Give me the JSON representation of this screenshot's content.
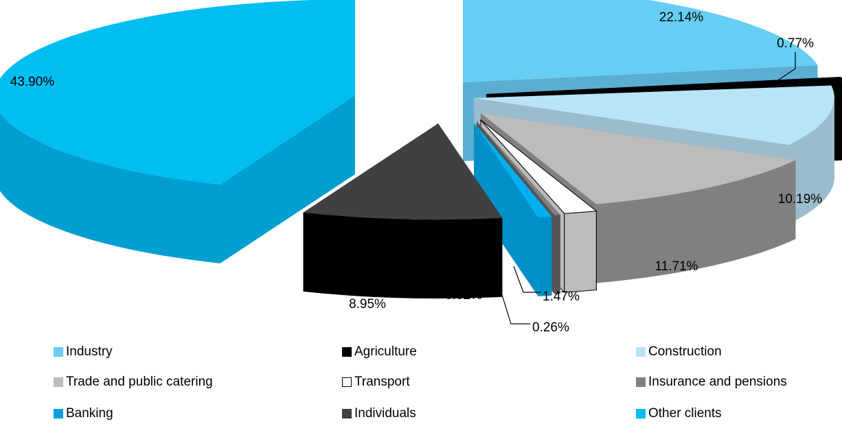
{
  "chart_data": {
    "type": "pie",
    "title": "",
    "slices": [
      {
        "label": "Industry",
        "value": 22.14,
        "value_label": "22.14%",
        "color": "#66cdf4",
        "side_color": "#5aaed1"
      },
      {
        "label": "Agriculture",
        "value": 0.77,
        "value_label": "0.77%",
        "color": "#000000",
        "side_color": "#000000"
      },
      {
        "label": "Construction",
        "value": 10.19,
        "value_label": "10.19%",
        "color": "#b9e4f7",
        "side_color": "#9bbccd"
      },
      {
        "label": "Insurance and pensions",
        "value": 11.71,
        "value_label": "11.71%",
        "color": "#bcbcbc",
        "side_color": "#808080"
      },
      {
        "label": "Transport",
        "value": 1.47,
        "value_label": "1.47%",
        "color": "#ffffff",
        "side_color": "#bcbcbc"
      },
      {
        "label": "Trade and public catering",
        "value": 0.26,
        "value_label": "0.26%",
        "color": "#808080",
        "side_color": "#555555"
      },
      {
        "label": "Banking",
        "value": 0.62,
        "value_label": "0.62%",
        "color": "#00b0f0",
        "side_color": "#0090c8"
      },
      {
        "label": "Individuals",
        "value": 8.95,
        "value_label": "8.95%",
        "color": "#404040",
        "side_color": "#000000"
      },
      {
        "label": "Other clients",
        "value": 43.9,
        "value_label": "43.90%",
        "color": "#00bdf2",
        "side_color": "#009fcf"
      }
    ],
    "legend": {
      "placement": "bottom",
      "entries": [
        {
          "label": "Industry",
          "color": "#66cdf4"
        },
        {
          "label": "Agriculture",
          "color": "#000000"
        },
        {
          "label": "Construction",
          "color": "#b9e4f7"
        },
        {
          "label": "Trade and public catering",
          "color": "#bcbcbc"
        },
        {
          "label": "Transport",
          "color": "#ffffff"
        },
        {
          "label": "Insurance and pensions",
          "color": "#808080"
        },
        {
          "label": "Banking",
          "color": "#009ee0"
        },
        {
          "label": "Individuals",
          "color": "#404040"
        },
        {
          "label": "Other clients",
          "color": "#00bdf2"
        }
      ]
    }
  }
}
